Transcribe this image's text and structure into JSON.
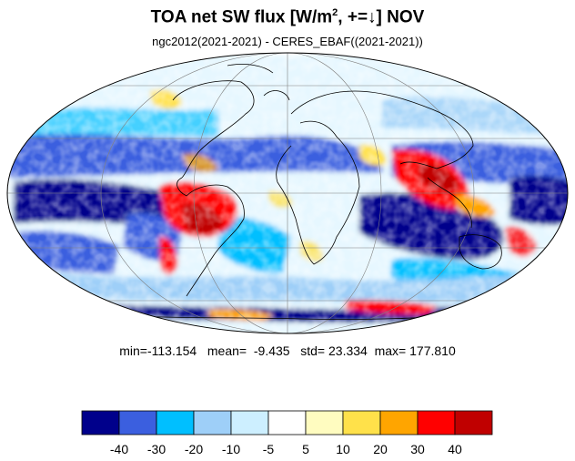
{
  "title": {
    "prefix": "TOA net SW flux [W/m",
    "superscript": "2",
    "suffix": ", +=↓]  NOV"
  },
  "subtitle": "ngc2012(2021-2021) - CERES_EBAF((2021-2021))",
  "stats": {
    "min_label": "min=",
    "min": "-113.154",
    "mean_label": "mean=",
    "mean": "-9.435",
    "std_label": "std=",
    "std": "23.334",
    "max_label": "max=",
    "max": "177.810"
  },
  "colorbar": {
    "colors": [
      "#00008b",
      "#3b5fdf",
      "#00bfff",
      "#9ecff8",
      "#cdefff",
      "#ffffff",
      "#fffcc0",
      "#ffe14a",
      "#ffa500",
      "#ff0000",
      "#c00000"
    ],
    "tick_labels": [
      "-40",
      "-30",
      "-20",
      "-10",
      "-5",
      "5",
      "10",
      "20",
      "30",
      "40"
    ]
  },
  "map": {
    "projection": "mollweide",
    "background_color": "#ffffff",
    "coastline_color": "#000000",
    "gridline_color": "#808080"
  }
}
